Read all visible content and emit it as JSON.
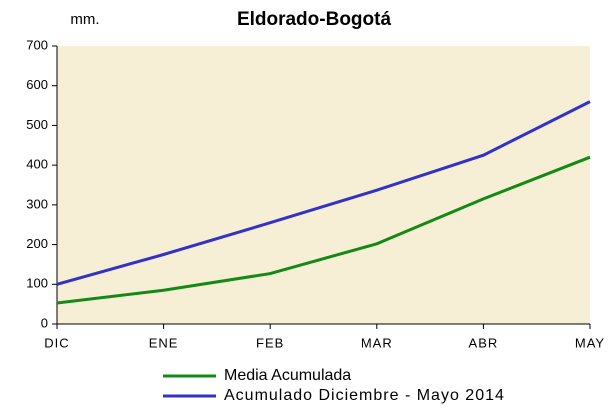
{
  "chart_data": {
    "type": "line",
    "title": "Eldorado-Bogotá",
    "y_label": "mm.",
    "categories": [
      "DIC",
      "ENE",
      "FEB",
      "MAR",
      "ABR",
      "MAY"
    ],
    "series": [
      {
        "name": "Media Acumulada",
        "color": "#138a13",
        "values": [
          53,
          85,
          127,
          202,
          315,
          420
        ]
      },
      {
        "name": "Acumulado  Diciembre - Mayo  2014",
        "color": "#3232c8",
        "values": [
          100,
          175,
          255,
          337,
          425,
          560
        ]
      }
    ],
    "ylim": [
      0,
      700
    ],
    "yticks": [
      0,
      100,
      200,
      300,
      400,
      500,
      600,
      700
    ],
    "grid": false,
    "plot_background": "#f7eed6",
    "legend": "bottom"
  }
}
